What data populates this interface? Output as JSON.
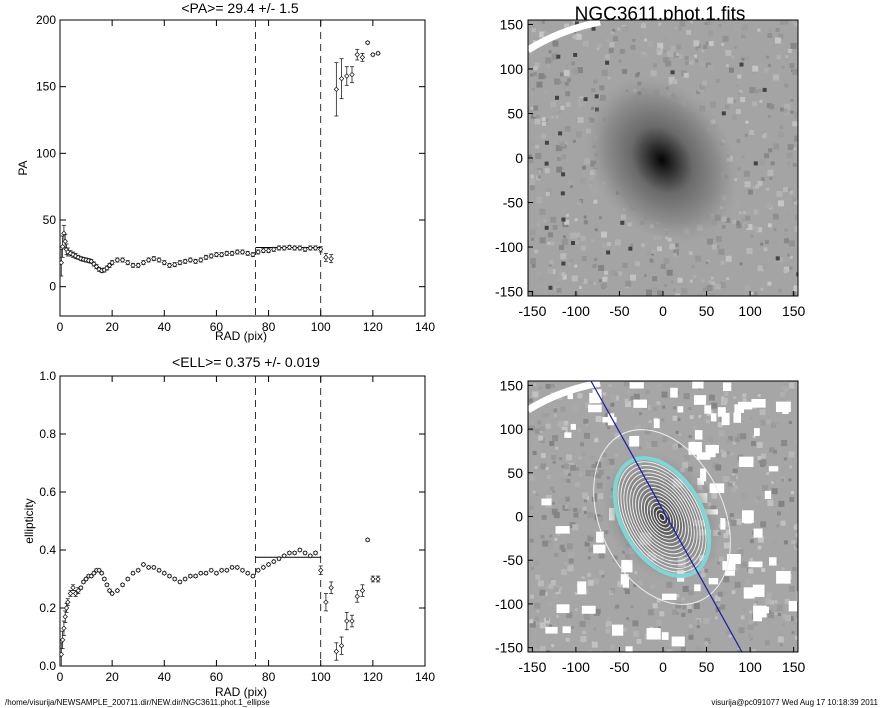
{
  "footer": {
    "left": "/home/visurija/NEWSAMPLE_200711.dir/NEW.dir/NGC3611.phot.1_ellipse",
    "right": "visurija@pc091077  Wed Aug 17 10:18:39 2011"
  },
  "image_panels": {
    "top_title": "NGC3611.phot.1.fits",
    "x_ticks": [
      "-150",
      "-100",
      "-50",
      "0",
      "50",
      "100",
      "150"
    ],
    "y_ticks": [
      "150",
      "100",
      "50",
      "0",
      "-50",
      "-100",
      "-150"
    ],
    "x_range": [
      -155,
      155
    ],
    "y_range": [
      -155,
      155
    ]
  },
  "chart_data": [
    {
      "type": "scatter",
      "title": "<PA>=  29.4 +/-   1.5",
      "xlabel": "RAD (pix)",
      "ylabel": "PA",
      "xlim": [
        0,
        140
      ],
      "ylim": [
        -22,
        200
      ],
      "x_ticks": [
        "0",
        "20",
        "40",
        "60",
        "80",
        "100",
        "120",
        "140"
      ],
      "y_ticks": [
        "0",
        "50",
        "100",
        "150",
        "200"
      ],
      "vlines": [
        75,
        100
      ],
      "mean_segment": {
        "x": [
          75,
          100
        ],
        "y": 29.4
      },
      "series": [
        {
          "x": [
            0.5,
            1,
            1.5,
            2,
            2.5,
            3,
            4,
            5,
            6,
            7,
            8,
            9,
            10,
            11,
            12,
            13,
            14,
            15,
            16,
            17,
            18,
            19,
            20,
            22,
            24,
            26,
            28,
            30,
            32,
            34,
            36,
            38,
            40,
            42,
            44,
            46,
            48,
            50,
            52,
            54,
            56,
            58,
            60,
            62,
            64,
            66,
            68,
            70,
            72,
            74,
            76,
            78,
            80,
            82,
            84,
            86,
            88,
            90,
            92,
            94,
            96,
            98,
            100,
            102,
            104,
            106,
            108,
            110,
            112,
            114,
            116,
            118,
            120,
            122
          ],
          "y": [
            18,
            30,
            40,
            34,
            28,
            26,
            25,
            24,
            23,
            22,
            21,
            20.5,
            20,
            19.5,
            19,
            17,
            15,
            13,
            12,
            12.5,
            14,
            16,
            18,
            20,
            20,
            18,
            16,
            16,
            18,
            20,
            21,
            20,
            18,
            16,
            16.5,
            18,
            19,
            20,
            19,
            20,
            22,
            23,
            24,
            24,
            25,
            25,
            26,
            26,
            25,
            24,
            26,
            27,
            27,
            28,
            29,
            29,
            29.5,
            29,
            29,
            28,
            29,
            29,
            28,
            22,
            21,
            148,
            156,
            158,
            159,
            174,
            172,
            183,
            174,
            175
          ],
          "err": [
            10,
            8,
            6,
            5,
            4,
            3,
            2,
            2,
            2,
            1.5,
            1.5,
            1.5,
            1.5,
            1.5,
            1.5,
            1.5,
            1.5,
            1.5,
            1.5,
            1.5,
            1.5,
            1.5,
            1.5,
            1.5,
            1.5,
            1.5,
            1.5,
            1.5,
            1.5,
            1.5,
            1.5,
            1.5,
            1.5,
            1.5,
            1.5,
            1.5,
            1.5,
            1.5,
            1.5,
            1.5,
            1.5,
            1.5,
            1.5,
            1.5,
            1.5,
            1.5,
            1.5,
            1.5,
            1.5,
            1.5,
            1.5,
            1.5,
            1.5,
            1.5,
            1.5,
            1.5,
            1.5,
            1.5,
            1.5,
            1.5,
            1.5,
            1.5,
            2,
            3,
            3,
            20,
            15,
            7,
            6,
            4,
            3,
            1,
            1,
            1
          ]
        }
      ]
    },
    {
      "type": "scatter",
      "title": "<ELL>= 0.375 +/-  0.019",
      "xlabel": "RAD (pix)",
      "ylabel": "ellipticity",
      "xlim": [
        0,
        140
      ],
      "ylim": [
        0,
        1
      ],
      "x_ticks": [
        "0",
        "20",
        "40",
        "60",
        "80",
        "100",
        "120",
        "140"
      ],
      "y_ticks": [
        "0.0",
        "0.2",
        "0.4",
        "0.6",
        "0.8",
        "1.0"
      ],
      "vlines": [
        75,
        100
      ],
      "mean_segment": {
        "x": [
          75,
          100
        ],
        "y": 0.375
      },
      "series": [
        {
          "x": [
            0.5,
            1,
            1.5,
            2,
            2.5,
            3,
            4,
            5,
            6,
            7,
            8,
            9,
            10,
            11,
            12,
            13,
            14,
            15,
            16,
            17,
            18,
            19,
            20,
            22,
            24,
            26,
            28,
            30,
            32,
            34,
            36,
            38,
            40,
            42,
            44,
            46,
            48,
            50,
            52,
            54,
            56,
            58,
            60,
            62,
            64,
            66,
            68,
            70,
            72,
            74,
            76,
            78,
            80,
            82,
            84,
            86,
            88,
            90,
            92,
            94,
            96,
            98,
            100,
            102,
            104,
            106,
            108,
            110,
            112,
            114,
            116,
            118,
            120,
            122
          ],
          "y": [
            0.04,
            0.09,
            0.13,
            0.17,
            0.2,
            0.22,
            0.25,
            0.27,
            0.25,
            0.26,
            0.27,
            0.29,
            0.3,
            0.31,
            0.31,
            0.32,
            0.33,
            0.33,
            0.32,
            0.3,
            0.28,
            0.26,
            0.25,
            0.26,
            0.28,
            0.3,
            0.32,
            0.33,
            0.35,
            0.34,
            0.34,
            0.33,
            0.32,
            0.31,
            0.3,
            0.29,
            0.3,
            0.31,
            0.31,
            0.32,
            0.32,
            0.33,
            0.32,
            0.33,
            0.33,
            0.34,
            0.34,
            0.33,
            0.32,
            0.31,
            0.33,
            0.34,
            0.35,
            0.36,
            0.37,
            0.38,
            0.39,
            0.39,
            0.4,
            0.39,
            0.38,
            0.39,
            0.33,
            0.22,
            0.27,
            0.05,
            0.07,
            0.155,
            0.155,
            0.24,
            0.26,
            0.435,
            0.3,
            0.3
          ],
          "err": [
            0.04,
            0.03,
            0.025,
            0.02,
            0.015,
            0.012,
            0.01,
            0.01,
            0.01,
            0.01,
            0.005,
            0.005,
            0.005,
            0.005,
            0.005,
            0.005,
            0.005,
            0.005,
            0.005,
            0.005,
            0.005,
            0.005,
            0.005,
            0.005,
            0.005,
            0.005,
            0.005,
            0.005,
            0.005,
            0.005,
            0.005,
            0.005,
            0.005,
            0.005,
            0.005,
            0.005,
            0.005,
            0.005,
            0.005,
            0.005,
            0.005,
            0.005,
            0.005,
            0.005,
            0.005,
            0.005,
            0.005,
            0.005,
            0.005,
            0.005,
            0.005,
            0.005,
            0.005,
            0.005,
            0.005,
            0.005,
            0.005,
            0.005,
            0.005,
            0.005,
            0.005,
            0.005,
            0.015,
            0.03,
            0.02,
            0.03,
            0.03,
            0.03,
            0.02,
            0.02,
            0.02,
            0.005,
            0.01,
            0.01
          ]
        }
      ]
    }
  ]
}
